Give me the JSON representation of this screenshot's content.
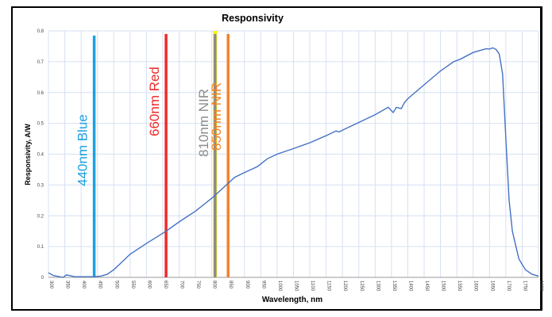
{
  "chart_data": {
    "type": "line",
    "title": "Responsivity",
    "xlabel": "Wavelength, nm",
    "ylabel": "Responsivity, A/W",
    "xlim": [
      300,
      1800
    ],
    "ylim": [
      0,
      0.8
    ],
    "x_ticks": [
      300,
      350,
      400,
      450,
      500,
      550,
      600,
      650,
      700,
      750,
      800,
      850,
      900,
      950,
      1000,
      1050,
      1100,
      1150,
      1200,
      1250,
      1300,
      1350,
      1400,
      1450,
      1500,
      1550,
      1600,
      1650,
      1700,
      1750,
      1800
    ],
    "y_ticks": [
      0,
      0.1,
      0.2,
      0.3,
      0.4,
      0.5,
      0.6,
      0.7,
      0.8
    ],
    "grid": true,
    "series": [
      {
        "name": "Responsivity",
        "color": "#4472C4",
        "x": [
          300,
          315,
          330,
          345,
          355,
          365,
          380,
          400,
          440,
          460,
          480,
          500,
          525,
          550,
          600,
          660,
          700,
          750,
          800,
          850,
          870,
          900,
          940,
          970,
          1000,
          1050,
          1100,
          1150,
          1180,
          1190,
          1200,
          1250,
          1300,
          1340,
          1355,
          1365,
          1380,
          1390,
          1400,
          1450,
          1500,
          1540,
          1560,
          1600,
          1640,
          1650,
          1660,
          1670,
          1680,
          1690,
          1700,
          1710,
          1720,
          1740,
          1760,
          1780,
          1800
        ],
        "y": [
          0.015,
          0.006,
          0.003,
          0.0,
          0.008,
          0.006,
          0.002,
          0.002,
          0.002,
          0.004,
          0.01,
          0.025,
          0.05,
          0.075,
          0.11,
          0.15,
          0.18,
          0.215,
          0.257,
          0.305,
          0.325,
          0.34,
          0.36,
          0.385,
          0.4,
          0.418,
          0.437,
          0.46,
          0.475,
          0.472,
          0.478,
          0.503,
          0.528,
          0.552,
          0.535,
          0.552,
          0.548,
          0.568,
          0.58,
          0.625,
          0.67,
          0.7,
          0.708,
          0.73,
          0.742,
          0.741,
          0.745,
          0.74,
          0.725,
          0.66,
          0.45,
          0.25,
          0.15,
          0.06,
          0.025,
          0.01,
          0.004
        ]
      }
    ],
    "markers": [
      {
        "label": "440nm  Blue",
        "x": 440,
        "color": "#1BA1E2",
        "top": 0.785
      },
      {
        "label": "660nm Red",
        "x": 660,
        "color": "#EE2A2A",
        "top": 0.79
      },
      {
        "label": "810nm NIR",
        "x": 810,
        "color": "#8C8C8C",
        "outline": "#FFF200",
        "top": 0.79
      },
      {
        "label": "850nm NIR",
        "x": 850,
        "color": "#F7822A",
        "top": 0.79
      }
    ]
  }
}
